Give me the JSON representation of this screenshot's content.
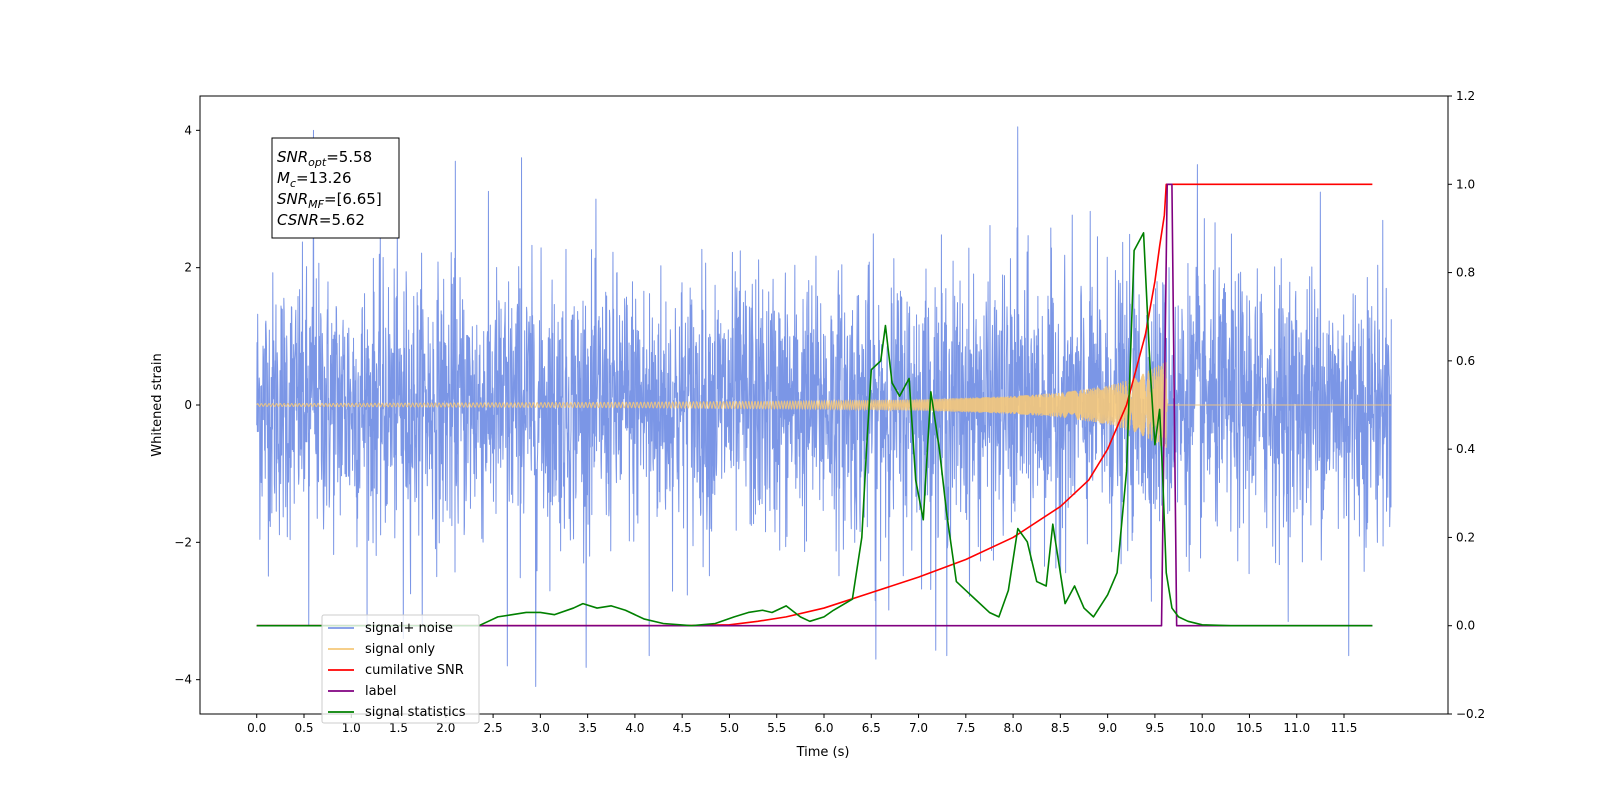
{
  "chart_data": {
    "type": "line",
    "xlabel": "Time (s)",
    "ylabel": "Whitened strain",
    "xlim": [
      -0.6,
      12.6
    ],
    "ylim": [
      -4.5,
      4.5
    ],
    "y2lim": [
      -0.2,
      1.2
    ],
    "x_ticks": [
      0.0,
      0.5,
      1.0,
      1.5,
      2.0,
      2.5,
      3.0,
      3.5,
      4.0,
      4.5,
      5.0,
      5.5,
      6.0,
      6.5,
      7.0,
      7.5,
      8.0,
      8.5,
      9.0,
      9.5,
      10.0,
      10.5,
      11.0,
      11.5
    ],
    "x_tick_labels": [
      "0.0",
      "0.5",
      "1.0",
      "1.5",
      "2.0",
      "2.5",
      "3.0",
      "3.5",
      "4.0",
      "4.5",
      "5.0",
      "5.5",
      "6.0",
      "6.5",
      "7.0",
      "7.5",
      "8.0",
      "8.5",
      "9.0",
      "9.5",
      "10.0",
      "10.5",
      "11.0",
      "11.5"
    ],
    "y_ticks": [
      -4,
      -2,
      0,
      2,
      4
    ],
    "y_tick_labels": [
      "−4",
      "−2",
      "0",
      "2",
      "4"
    ],
    "y2_ticks": [
      -0.2,
      0.0,
      0.2,
      0.4,
      0.6,
      0.8,
      1.0,
      1.2
    ],
    "y2_tick_labels": [
      "−0.2",
      "0.0",
      "0.2",
      "0.4",
      "0.6",
      "0.8",
      "1.0",
      "1.2"
    ],
    "grid": false,
    "legend_position": "lower-left",
    "annotation": [
      {
        "base": "SNR",
        "sub": "opt",
        "value": "=5.58"
      },
      {
        "base": "M",
        "sub": "c",
        "value": "=13.26"
      },
      {
        "base": "SNR",
        "sub": "MF",
        "value": "=[6.65]"
      },
      {
        "base": "CSNR",
        "sub": "",
        "value": "=5.62"
      }
    ],
    "series": [
      {
        "name": "signal+ noise",
        "color": "#7b96e6",
        "axis": "left",
        "x_range": [
          0,
          12
        ],
        "typical_range": [
          -2.0,
          2.0
        ],
        "spikes": [
          {
            "x": 0.6,
            "y": 4.0
          },
          {
            "x": 2.1,
            "y": 3.55
          },
          {
            "x": 2.8,
            "y": 3.6
          },
          {
            "x": 8.05,
            "y": 4.05
          },
          {
            "x": 9.95,
            "y": 3.5
          },
          {
            "x": 11.25,
            "y": 3.1
          },
          {
            "x": 2.65,
            "y": -3.8
          },
          {
            "x": 2.95,
            "y": -4.1
          },
          {
            "x": 4.15,
            "y": -3.65
          },
          {
            "x": 6.55,
            "y": -3.7
          },
          {
            "x": 7.3,
            "y": -3.65
          },
          {
            "x": 11.55,
            "y": -3.65
          },
          {
            "x": 0.55,
            "y": -3.2
          },
          {
            "x": 1.55,
            "y": -3.4
          }
        ]
      },
      {
        "name": "signal only",
        "color": "#f5c87a",
        "axis": "left",
        "envelope": [
          [
            0,
            0.02
          ],
          [
            4.0,
            0.04
          ],
          [
            6.0,
            0.06
          ],
          [
            7.0,
            0.08
          ],
          [
            8.0,
            0.13
          ],
          [
            8.5,
            0.18
          ],
          [
            9.0,
            0.28
          ],
          [
            9.3,
            0.4
          ],
          [
            9.5,
            0.55
          ],
          [
            9.62,
            0.65
          ],
          [
            9.63,
            0.0
          ],
          [
            12.0,
            0.0
          ]
        ]
      },
      {
        "name": "cumilative SNR",
        "color": "#ff0000",
        "axis": "right",
        "x": [
          0,
          4.5,
          5.0,
          5.3,
          5.6,
          6.0,
          6.5,
          7.0,
          7.5,
          8.0,
          8.5,
          8.8,
          9.0,
          9.2,
          9.4,
          9.5,
          9.55,
          9.6,
          9.62,
          11.8
        ],
        "y": [
          0.0,
          0.0,
          0.002,
          0.01,
          0.02,
          0.04,
          0.075,
          0.11,
          0.15,
          0.2,
          0.27,
          0.33,
          0.4,
          0.5,
          0.66,
          0.78,
          0.86,
          0.93,
          1.0,
          1.0
        ]
      },
      {
        "name": "label",
        "color": "#800080",
        "axis": "right",
        "x": [
          0,
          9.57,
          9.63,
          9.68,
          9.73,
          11.8
        ],
        "y": [
          0.0,
          0.0,
          1.0,
          1.0,
          0.0,
          0.0
        ]
      },
      {
        "name": "signal statistics",
        "color": "#008000",
        "axis": "right",
        "x": [
          0.0,
          2.35,
          2.45,
          2.55,
          2.7,
          2.85,
          3.0,
          3.15,
          3.35,
          3.45,
          3.6,
          3.75,
          3.9,
          4.1,
          4.3,
          4.6,
          4.85,
          5.05,
          5.2,
          5.35,
          5.45,
          5.6,
          5.75,
          5.85,
          6.0,
          6.1,
          6.3,
          6.4,
          6.45,
          6.5,
          6.6,
          6.65,
          6.72,
          6.8,
          6.9,
          6.97,
          7.05,
          7.13,
          7.22,
          7.3,
          7.4,
          7.5,
          7.6,
          7.75,
          7.85,
          7.95,
          8.05,
          8.15,
          8.25,
          8.35,
          8.42,
          8.55,
          8.65,
          8.75,
          8.85,
          9.0,
          9.1,
          9.2,
          9.28,
          9.38,
          9.45,
          9.5,
          9.55,
          9.58,
          9.62,
          9.68,
          9.75,
          9.85,
          10.0,
          10.3,
          11.8
        ],
        "y": [
          0.0,
          0.0,
          0.01,
          0.02,
          0.025,
          0.03,
          0.03,
          0.025,
          0.04,
          0.05,
          0.04,
          0.045,
          0.035,
          0.015,
          0.005,
          0.0,
          0.005,
          0.02,
          0.03,
          0.035,
          0.03,
          0.045,
          0.02,
          0.01,
          0.02,
          0.035,
          0.06,
          0.2,
          0.4,
          0.58,
          0.6,
          0.68,
          0.55,
          0.52,
          0.56,
          0.33,
          0.24,
          0.53,
          0.4,
          0.25,
          0.1,
          0.08,
          0.06,
          0.03,
          0.02,
          0.08,
          0.22,
          0.19,
          0.1,
          0.09,
          0.23,
          0.05,
          0.09,
          0.04,
          0.02,
          0.07,
          0.12,
          0.35,
          0.85,
          0.89,
          0.58,
          0.41,
          0.49,
          0.35,
          0.12,
          0.04,
          0.02,
          0.01,
          0.002,
          0.0,
          0.0
        ]
      }
    ]
  }
}
